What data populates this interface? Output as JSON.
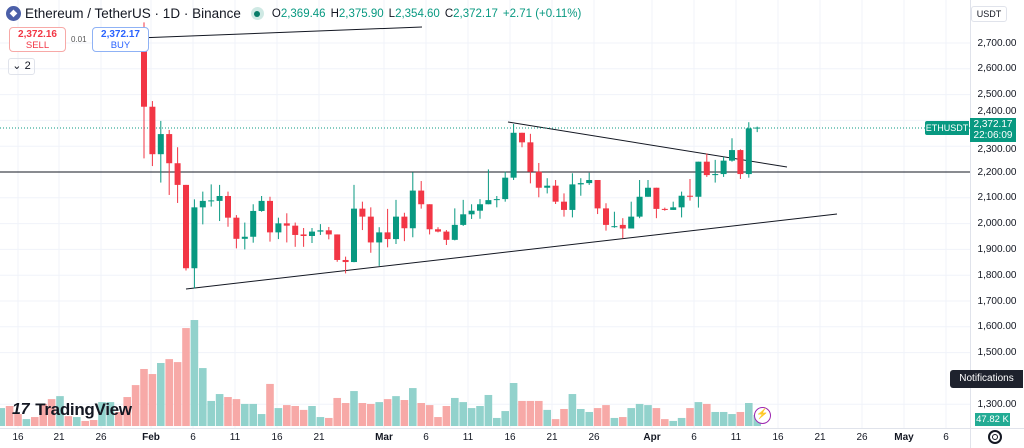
{
  "header": {
    "symbol": "Ethereum / TetherUS · 1D · Binance",
    "icon": "ethereum-icon",
    "market_status": "open",
    "open_label": "O",
    "open": "2,369.46",
    "high_label": "H",
    "high": "2,375.90",
    "low_label": "L",
    "low": "2,354.60",
    "close_label": "C",
    "close": "2,372.17",
    "change": "+2.71 (+0.11%)"
  },
  "trade": {
    "sell_price": "2,372.16",
    "sell_label": "SELL",
    "buy_price": "2,372.17",
    "buy_label": "BUY",
    "spread": "0.01"
  },
  "indicators_toggle": "2",
  "currency": "USDT",
  "price_axis": [
    "2,700.00",
    "2,600.00",
    "2,500.00",
    "2,400.00",
    "2,300.00",
    "2,200.00",
    "2,100.00",
    "2,000.00",
    "1,900.00",
    "1,800.00",
    "1,700.00",
    "1,600.00",
    "1,500.00",
    "1,300.00"
  ],
  "price_axis_values": [
    2700,
    2600,
    2500,
    2400,
    2300,
    2200,
    2100,
    2000,
    1900,
    1800,
    1700,
    1600,
    1500,
    1300
  ],
  "time_axis": [
    {
      "t": "16",
      "bold": false
    },
    {
      "t": "21",
      "bold": false
    },
    {
      "t": "26",
      "bold": false
    },
    {
      "t": "Feb",
      "bold": true
    },
    {
      "t": "6",
      "bold": false
    },
    {
      "t": "11",
      "bold": false
    },
    {
      "t": "16",
      "bold": false
    },
    {
      "t": "21",
      "bold": false
    },
    {
      "t": "Mar",
      "bold": true
    },
    {
      "t": "6",
      "bold": false
    },
    {
      "t": "11",
      "bold": false
    },
    {
      "t": "16",
      "bold": false
    },
    {
      "t": "21",
      "bold": false
    },
    {
      "t": "26",
      "bold": false
    },
    {
      "t": "Apr",
      "bold": true
    },
    {
      "t": "6",
      "bold": false
    },
    {
      "t": "11",
      "bold": false
    },
    {
      "t": "16",
      "bold": false
    },
    {
      "t": "21",
      "bold": false
    },
    {
      "t": "26",
      "bold": false
    },
    {
      "t": "May",
      "bold": true
    },
    {
      "t": "6",
      "bold": false
    }
  ],
  "symbol_tag": "ETHUSDT",
  "last_price": "2,372.17",
  "countdown": "22:06:09",
  "notifications_tooltip": "Notifications",
  "volume_last": "47.82 K",
  "logo_text": "TradingView",
  "colors": {
    "up": "#089981",
    "down": "#f23645",
    "vol_up": "#92d2cc",
    "vol_down": "#f7a9a7"
  },
  "chart_data": {
    "type": "candlestick",
    "current_price": 2372.17,
    "ohlc": [
      [
        2760,
        2780,
        2253,
        2453
      ],
      [
        2453,
        2475,
        2223,
        2269
      ],
      [
        2269,
        2398,
        2159,
        2347
      ],
      [
        2347,
        2363,
        2111,
        2234
      ],
      [
        2234,
        2296,
        2080,
        2150
      ],
      [
        2150,
        2150,
        1818,
        1827
      ],
      [
        1827,
        2094,
        1749,
        2063
      ],
      [
        2063,
        2124,
        1997,
        2088
      ],
      [
        2088,
        2152,
        2066,
        2090
      ],
      [
        2088,
        2150,
        2010,
        2107
      ],
      [
        2107,
        2124,
        1988,
        2023
      ],
      [
        2023,
        2033,
        1904,
        1941
      ],
      [
        1941,
        2004,
        1900,
        1949
      ],
      [
        1949,
        2075,
        1926,
        2049
      ],
      [
        2049,
        2107,
        2046,
        2088
      ],
      [
        2088,
        2104,
        1930,
        1966
      ],
      [
        1966,
        2023,
        1940,
        2001
      ],
      [
        2001,
        2040,
        1927,
        1992
      ],
      [
        1992,
        2004,
        1910,
        1956
      ],
      [
        1958,
        1983,
        1910,
        1952
      ],
      [
        1952,
        1983,
        1925,
        1969
      ],
      [
        1969,
        1998,
        1956,
        1974
      ],
      [
        1974,
        1987,
        1939,
        1958
      ],
      [
        1958,
        1958,
        1852,
        1859
      ],
      [
        1859,
        1872,
        1807,
        1851
      ],
      [
        1851,
        2150,
        1850,
        2058
      ],
      [
        2058,
        2085,
        1975,
        2027
      ],
      [
        2027,
        2063,
        1887,
        1927
      ],
      [
        1927,
        1986,
        1836,
        1966
      ],
      [
        1966,
        2057,
        1908,
        1940
      ],
      [
        1940,
        2092,
        1921,
        2027
      ],
      [
        2027,
        2042,
        1932,
        1982
      ],
      [
        1982,
        2199,
        1947,
        2128
      ],
      [
        2128,
        2165,
        2058,
        2075
      ],
      [
        2075,
        2075,
        1958,
        1978
      ],
      [
        1978,
        1986,
        1966,
        1969
      ],
      [
        1969,
        1975,
        1917,
        1937
      ],
      [
        1937,
        2059,
        1935,
        1995
      ],
      [
        1995,
        2092,
        1991,
        2036
      ],
      [
        2036,
        2075,
        2018,
        2050
      ],
      [
        2050,
        2095,
        2019,
        2075
      ],
      [
        2075,
        2210,
        2075,
        2091
      ],
      [
        2091,
        2107,
        2063,
        2095
      ],
      [
        2095,
        2201,
        2085,
        2178
      ],
      [
        2178,
        2386,
        2169,
        2352
      ],
      [
        2352,
        2352,
        2296,
        2315
      ],
      [
        2315,
        2348,
        2156,
        2201
      ],
      [
        2201,
        2235,
        2102,
        2139
      ],
      [
        2139,
        2176,
        2117,
        2147
      ],
      [
        2147,
        2169,
        2076,
        2085
      ],
      [
        2085,
        2117,
        2027,
        2053
      ],
      [
        2053,
        2195,
        2024,
        2152
      ],
      [
        2152,
        2176,
        2108,
        2157
      ],
      [
        2157,
        2197,
        2150,
        2169
      ],
      [
        2169,
        2169,
        2037,
        2059
      ],
      [
        2059,
        2079,
        1973,
        1995
      ],
      [
        1987,
        2046,
        1984,
        1990
      ],
      [
        1995,
        2021,
        1943,
        1981
      ],
      [
        1981,
        2085,
        1984,
        2027
      ],
      [
        2027,
        2169,
        2021,
        2104
      ],
      [
        2104,
        2169,
        2104,
        2139
      ],
      [
        2139,
        2139,
        2021,
        2057
      ],
      [
        2057,
        2062,
        2050,
        2053
      ],
      [
        2053,
        2085,
        2053,
        2063
      ],
      [
        2063,
        2124,
        2024,
        2108
      ],
      [
        2108,
        2173,
        2089,
        2104
      ],
      [
        2104,
        2240,
        2062,
        2240
      ],
      [
        2240,
        2272,
        2181,
        2188
      ],
      [
        2188,
        2247,
        2159,
        2192
      ],
      [
        2192,
        2259,
        2181,
        2244
      ],
      [
        2244,
        2331,
        2240,
        2285
      ],
      [
        2285,
        2288,
        2173,
        2192
      ],
      [
        2192,
        2393,
        2178,
        2369
      ],
      [
        2369.46,
        2375.9,
        2354.6,
        2372.17
      ]
    ],
    "volume_k_before": [
      [
        78,
        "up"
      ],
      [
        87,
        "down"
      ],
      [
        52,
        "down"
      ],
      [
        30,
        "up"
      ],
      [
        39,
        "down"
      ],
      [
        96,
        "down"
      ],
      [
        117,
        "down"
      ],
      [
        130,
        "up"
      ],
      [
        43,
        "down"
      ],
      [
        39,
        "up"
      ],
      [
        22,
        "down"
      ],
      [
        26,
        "down"
      ],
      [
        104,
        "up"
      ],
      [
        104,
        "up"
      ],
      [
        61,
        "down"
      ],
      [
        126,
        "down"
      ],
      [
        178,
        "down"
      ]
    ],
    "volume_k": [
      248,
      226,
      274,
      291,
      278,
      426,
      461,
      252,
      109,
      139,
      126,
      117,
      96,
      96,
      52,
      183,
      78,
      91,
      87,
      70,
      87,
      39,
      35,
      122,
      100,
      152,
      100,
      96,
      104,
      117,
      130,
      113,
      165,
      100,
      91,
      39,
      87,
      122,
      104,
      78,
      87,
      135,
      35,
      65,
      187,
      109,
      109,
      109,
      70,
      30,
      74,
      139,
      74,
      61,
      78,
      91,
      35,
      39,
      78,
      96,
      91,
      78,
      30,
      22,
      35,
      78,
      104,
      96,
      61,
      61,
      52,
      61,
      100,
      47.82
    ],
    "trendlines": [
      {
        "from": [
          2,
          2160,
          0
        ],
        "to": [
          2,
          2230,
          0
        ]
      }
    ],
    "ylim": [
      1250,
      2750
    ]
  }
}
